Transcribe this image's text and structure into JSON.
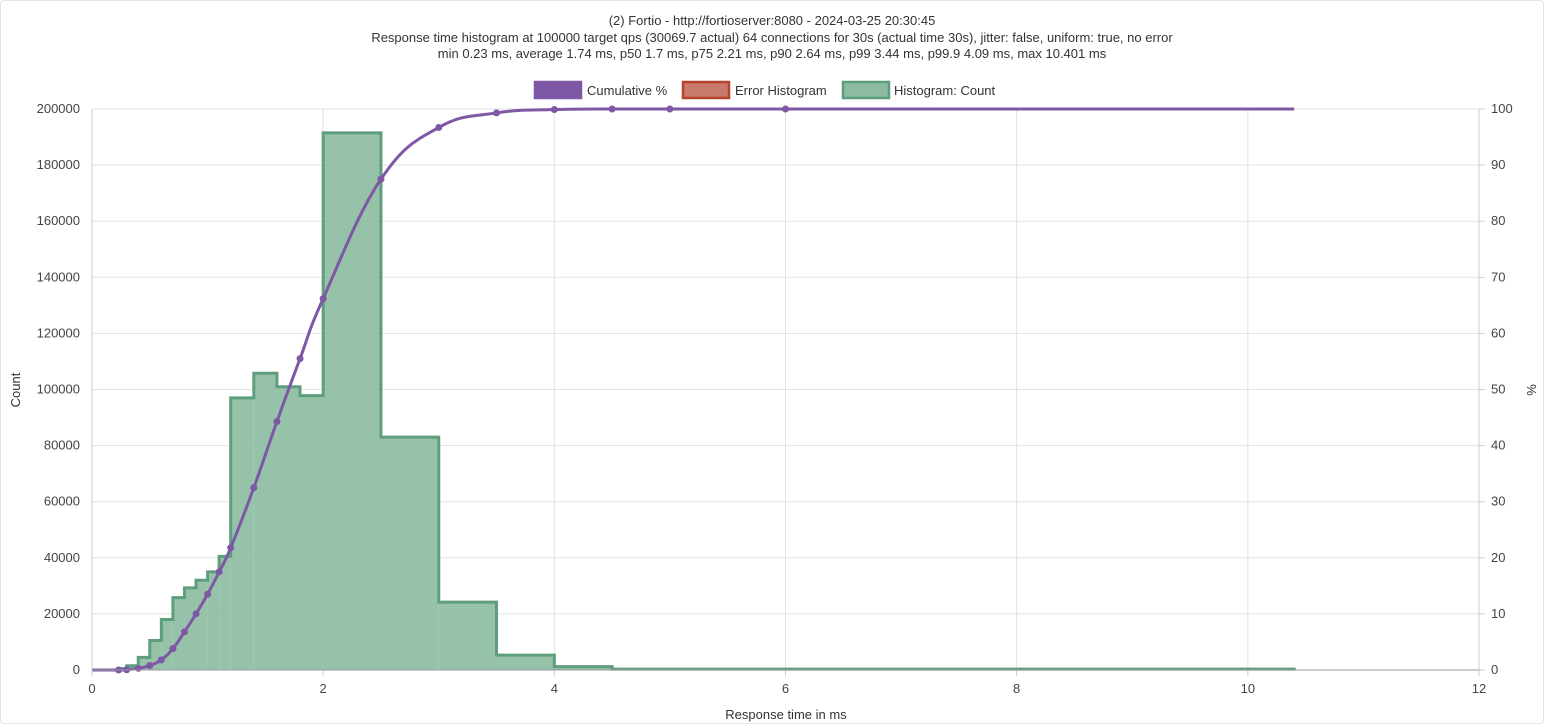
{
  "chart_data": {
    "type": "bar",
    "title": [
      "(2) Fortio - http://fortioserver:8080 - 2024-03-25 20:30:45",
      "Response time histogram at 100000 target qps (30069.7 actual) 64 connections for 30s (actual time 30s), jitter: false, uniform: true, no error",
      "min 0.23 ms, average 1.74 ms, p50 1.7 ms, p75 2.21 ms, p90 2.64 ms, p99 3.44 ms, p99.9 4.09 ms, max 10.401 ms"
    ],
    "xlabel": "Response time in ms",
    "ylabel": "Count",
    "y2label": "%",
    "xlim": [
      0,
      12
    ],
    "ylim": [
      0,
      200000
    ],
    "y2lim": [
      0,
      100
    ],
    "xticks": [
      0,
      2,
      4,
      6,
      8,
      10,
      12
    ],
    "yticks": [
      0,
      20000,
      40000,
      60000,
      80000,
      100000,
      120000,
      140000,
      160000,
      180000,
      200000
    ],
    "y2ticks": [
      0,
      10,
      20,
      30,
      40,
      50,
      60,
      70,
      80,
      90,
      100
    ],
    "grid": true,
    "legend": "top-center",
    "series": [
      {
        "name": "Cumulative %",
        "type": "line",
        "axis": "right",
        "color": "#7e57a5",
        "points": [
          [
            0,
            0
          ],
          [
            0.23,
            0
          ],
          [
            0.3,
            0.05
          ],
          [
            0.4,
            0.3
          ],
          [
            0.5,
            0.8
          ],
          [
            0.6,
            1.8
          ],
          [
            0.7,
            3.8
          ],
          [
            0.8,
            6.8
          ],
          [
            0.9,
            10
          ],
          [
            1.0,
            13.5
          ],
          [
            1.1,
            17.5
          ],
          [
            1.2,
            21.8
          ],
          [
            1.4,
            32.5
          ],
          [
            1.6,
            44.3
          ],
          [
            1.8,
            55.5
          ],
          [
            2.0,
            66.2
          ],
          [
            2.5,
            87.5
          ],
          [
            3.0,
            96.7
          ],
          [
            3.5,
            99.3
          ],
          [
            4.0,
            99.9
          ],
          [
            4.5,
            100
          ],
          [
            5.0,
            100
          ],
          [
            6.0,
            100
          ],
          [
            10.401,
            100
          ]
        ],
        "markers": [
          [
            0.23,
            0
          ],
          [
            0.3,
            0.05
          ],
          [
            0.4,
            0.3
          ],
          [
            0.5,
            0.8
          ],
          [
            0.6,
            1.8
          ],
          [
            0.7,
            3.8
          ],
          [
            0.8,
            6.8
          ],
          [
            0.9,
            10
          ],
          [
            1.0,
            13.5
          ],
          [
            1.1,
            17.5
          ],
          [
            1.2,
            21.8
          ],
          [
            1.4,
            32.5
          ],
          [
            1.6,
            44.3
          ],
          [
            1.8,
            55.5
          ],
          [
            2.0,
            66.2
          ],
          [
            2.5,
            87.5
          ],
          [
            3.0,
            96.7
          ],
          [
            3.5,
            99.3
          ],
          [
            4.0,
            99.9
          ],
          [
            4.5,
            100
          ],
          [
            5.0,
            100
          ],
          [
            6.0,
            100
          ]
        ]
      },
      {
        "name": "Error Histogram",
        "type": "bar",
        "axis": "left",
        "color": "#c97a6a",
        "border": "#b5432e",
        "bins": []
      },
      {
        "name": "Histogram: Count",
        "type": "bar",
        "axis": "left",
        "color": "#8bbba0",
        "border": "#5e9e7d",
        "bins": [
          [
            0.23,
            0.3,
            500
          ],
          [
            0.3,
            0.4,
            1500
          ],
          [
            0.4,
            0.5,
            4500
          ],
          [
            0.5,
            0.6,
            10500
          ],
          [
            0.6,
            0.7,
            18000
          ],
          [
            0.7,
            0.8,
            25800
          ],
          [
            0.8,
            0.9,
            29300
          ],
          [
            0.9,
            1.0,
            32000
          ],
          [
            1.0,
            1.1,
            35000
          ],
          [
            1.1,
            1.2,
            40500
          ],
          [
            1.2,
            1.4,
            97000
          ],
          [
            1.4,
            1.6,
            105800
          ],
          [
            1.6,
            1.8,
            101000
          ],
          [
            1.8,
            2.0,
            97800
          ],
          [
            2.0,
            2.5,
            191500
          ],
          [
            2.5,
            3.0,
            83000
          ],
          [
            3.0,
            3.5,
            24200
          ],
          [
            3.5,
            4.0,
            5300
          ],
          [
            4.0,
            4.5,
            1200
          ],
          [
            4.5,
            10.401,
            300
          ]
        ]
      }
    ]
  }
}
